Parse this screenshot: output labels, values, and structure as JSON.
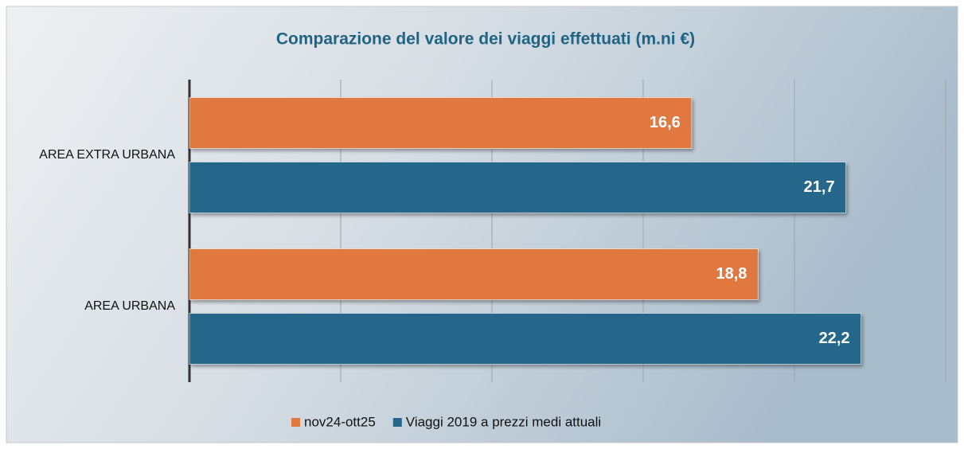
{
  "chart_data": {
    "type": "bar",
    "orientation": "horizontal",
    "title": "Comparazione del valore dei viaggi effettuati (m.ni €)",
    "categories": [
      "AREA EXTRA URBANA",
      "AREA URBANA"
    ],
    "series": [
      {
        "name": "nov24-ott25",
        "color": "#e07840",
        "values": [
          16.6,
          18.8
        ],
        "value_labels": [
          "16,6",
          "18,8"
        ]
      },
      {
        "name": "Viaggi 2019 a prezzi medi attuali",
        "color": "#24678a",
        "values": [
          21.7,
          22.2
        ],
        "value_labels": [
          "21,7",
          "22,2"
        ]
      }
    ],
    "xlim": [
      0,
      25
    ],
    "xticks": [
      0,
      5,
      10,
      15,
      20,
      25
    ],
    "grid": true,
    "legend": "bottom"
  }
}
